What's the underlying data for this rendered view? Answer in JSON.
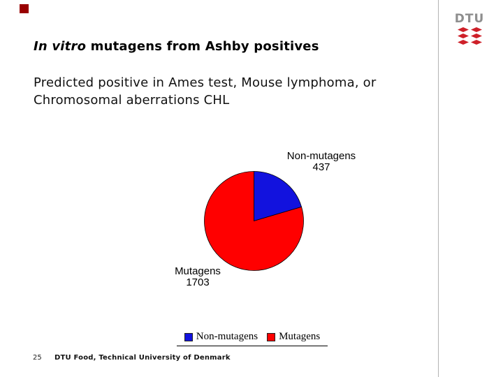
{
  "header": {
    "title_italic": "In vitro",
    "title_rest": " mutagens from Ashby positives",
    "subtitle_line1": "Predicted positive in Ames test, Mouse lymphoma, or",
    "subtitle_line2": "Chromosomal aberrations CHL"
  },
  "chart_data": {
    "type": "pie",
    "categories": [
      "Non-mutagens",
      "Mutagens"
    ],
    "values": [
      437,
      1703
    ],
    "colors": [
      "#1212DE",
      "#FF0000"
    ],
    "start_angle_deg": 0,
    "direction": "clockwise",
    "callouts": [
      {
        "label": "Non-mutagens",
        "value": "437"
      },
      {
        "label": "Mutagens",
        "value": "1703"
      }
    ],
    "legend": {
      "position": "bottom",
      "items": [
        {
          "label": "Non-mutagens",
          "color": "#1212DE"
        },
        {
          "label": "Mutagens",
          "color": "#FF0000"
        }
      ]
    }
  },
  "footer": {
    "page_number": "25",
    "text": "DTU Food, Technical University of Denmark"
  },
  "logo": {
    "label": "DTU",
    "letter_color": "#8E8E8E",
    "symbol_color": "#CE2029"
  },
  "theme": {
    "accent_square_color": "#990000",
    "divider_color": "#B3B3B3",
    "background": "#FFFFFF",
    "text_color": "#000000"
  }
}
